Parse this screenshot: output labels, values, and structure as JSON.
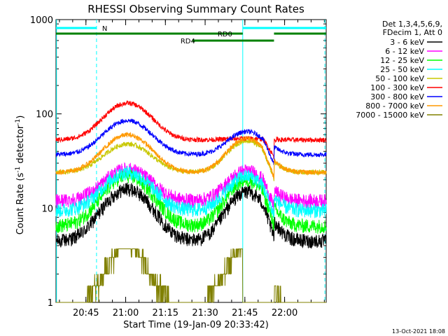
{
  "chart_data": {
    "type": "line",
    "title": "RHESSI Observing Summary Count Rates",
    "xlabel": "Start Time (19-Jan-09 20:33:42)",
    "ylabel_main": "Count Rate (s",
    "ylabel_sup1": "-1",
    "ylabel_mid": " detector",
    "ylabel_sup2": "-1",
    "ylabel_end": ")",
    "y_scale": "log",
    "ylim": [
      1,
      1000
    ],
    "xlim_minutes": [
      0,
      102
    ],
    "x_ticks": [
      {
        "label": "20:45",
        "min": 11.3
      },
      {
        "label": "21:00",
        "min": 26.3
      },
      {
        "label": "21:15",
        "min": 41.3
      },
      {
        "label": "21:30",
        "min": 56.3
      },
      {
        "label": "21:45",
        "min": 71.3
      },
      {
        "label": "22:00",
        "min": 86.3
      }
    ],
    "y_ticks": [
      {
        "label": "1",
        "value": 1
      },
      {
        "label": "10",
        "value": 10
      },
      {
        "label": "100",
        "value": 100
      },
      {
        "label": "1000",
        "value": 1000
      }
    ],
    "legend_header": [
      "Det 1,3,4,5,6,9,",
      "FDecim 1, Att 0"
    ],
    "series": [
      {
        "name": "3 - 6 keV",
        "color": "#000000",
        "base": 4.5,
        "peak1": 16,
        "peak2": 15,
        "step": 0
      },
      {
        "name": "6 - 12 keV",
        "color": "#ff00ff",
        "base": 12,
        "peak1": 26,
        "peak2": 25,
        "step": 0
      },
      {
        "name": "12 - 25 keV",
        "color": "#00ff00",
        "base": 6.5,
        "peak1": 22,
        "peak2": 20,
        "step": 0
      },
      {
        "name": "25 - 50 keV",
        "color": "#00ffff",
        "base": 9.5,
        "peak1": 24,
        "peak2": 22,
        "step": 0
      },
      {
        "name": "50 - 100 keV",
        "color": "#c8c800",
        "base": 24,
        "peak1": 48,
        "peak2": 52,
        "step": 1
      },
      {
        "name": "100 - 300 keV",
        "color": "#ff0000",
        "base": 53,
        "peak1": 130,
        "peak2": 55,
        "step": 1
      },
      {
        "name": "300 - 800 keV",
        "color": "#0000ff",
        "base": 37,
        "peak1": 85,
        "peak2": 65,
        "step": 1
      },
      {
        "name": "800 - 7000 keV",
        "color": "#ff9900",
        "base": 24,
        "peak1": 60,
        "peak2": 55,
        "step": 1
      },
      {
        "name": "7000 - 15000 keV",
        "color": "#808000",
        "base": 1,
        "peak1": 3.7,
        "peak2": 3.7,
        "step": 0
      }
    ],
    "flags": [
      {
        "label": "N",
        "color": "#00ffff",
        "segments": [
          [
            0,
            15.3
          ],
          [
            70.5,
            102
          ]
        ]
      },
      {
        "label": "RD0",
        "color": "#008000",
        "segments": [
          [
            0,
            70.5
          ],
          [
            82.3,
            102
          ]
        ]
      },
      {
        "label": "RD4",
        "color": "#008000",
        "segments": [
          [
            51.5,
            82.3
          ]
        ]
      }
    ],
    "vertical_markers": [
      {
        "min": 0.2,
        "color": "#00ffff",
        "style": "solid"
      },
      {
        "min": 15.3,
        "color": "#00ffff",
        "style": "dashed"
      },
      {
        "min": 70.5,
        "color": "#00ffff",
        "style": "solid"
      },
      {
        "min": 101.5,
        "color": "#00ffff",
        "style": "dashed"
      }
    ],
    "footer_date": "13-Oct-2021 18:08"
  }
}
